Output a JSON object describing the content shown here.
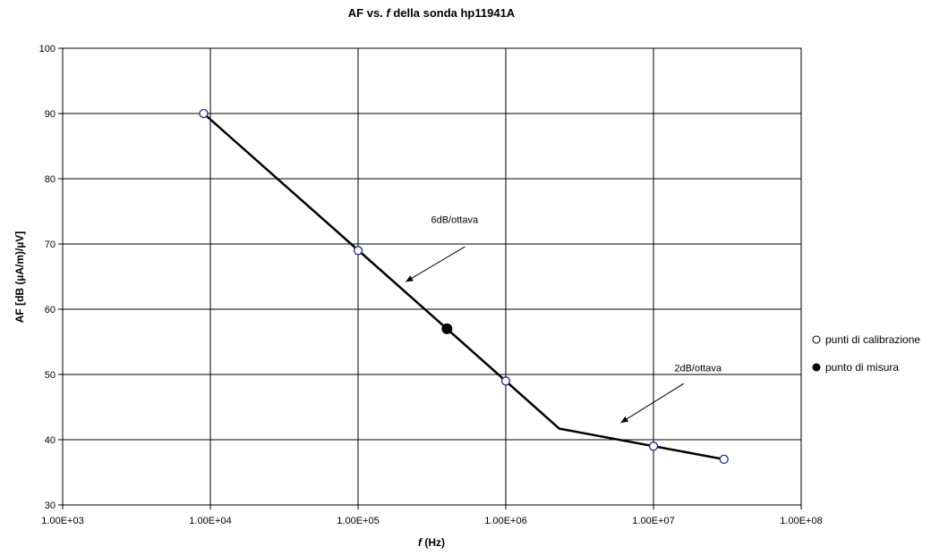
{
  "chart_data": {
    "type": "scatter",
    "title": {
      "prefix": "AF vs. ",
      "variable": "f",
      "suffix": " della sonda hp11941A"
    },
    "xlabel": {
      "variable": "f",
      "suffix": " (Hz)"
    },
    "ylabel": "AF [dB (µA/m)/µV]",
    "x_scale": "log",
    "xlim": [
      1000,
      100000000
    ],
    "ylim": [
      30,
      100
    ],
    "x_ticks": [
      1000,
      10000,
      100000,
      1000000,
      10000000,
      100000000
    ],
    "x_tick_labels": [
      "1.00E+03",
      "1.00E+04",
      "1.00E+05",
      "1.00E+06",
      "1.00E+07",
      "1.00E+08"
    ],
    "y_ticks": [
      30,
      40,
      50,
      60,
      70,
      80,
      90,
      100
    ],
    "y_tick_labels": [
      "30",
      "40",
      "50",
      "60",
      "70",
      "80",
      "90",
      "100"
    ],
    "grid": true,
    "legend_position": "right",
    "series": [
      {
        "name": "punti di calibrazione",
        "marker": "open-circle",
        "color": "#1f2a8a",
        "x": [
          9000,
          100000,
          1000000,
          10000000,
          30000000
        ],
        "y": [
          90,
          69,
          49,
          39,
          37
        ]
      },
      {
        "name": "punto di misura",
        "marker": "filled-circle",
        "color": "#000000",
        "x": [
          400000
        ],
        "y": [
          57
        ]
      }
    ],
    "line": {
      "color": "#000000",
      "x": [
        9000,
        400000,
        2300000,
        30000000
      ],
      "y": [
        90,
        57,
        41.7,
        37
      ]
    },
    "annotations": [
      {
        "text": "6dB/ottava",
        "text_at": [
          450000,
          73.2
        ],
        "arrow_from": [
          530000,
          69.6
        ],
        "arrow_to": [
          210000,
          64.2
        ]
      },
      {
        "text": "2dB/ottava",
        "text_at": [
          20000000,
          50.5
        ],
        "arrow_from": [
          16000000,
          48.6
        ],
        "arrow_to": [
          6000000,
          42.6
        ]
      }
    ]
  }
}
